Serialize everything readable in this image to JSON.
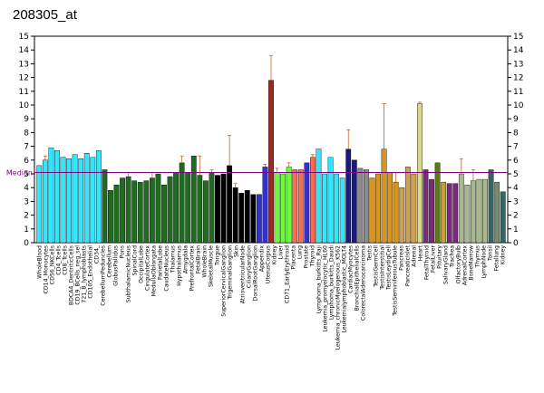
{
  "chart_data": {
    "type": "bar",
    "title": "208305_at",
    "ylim": [
      0,
      15
    ],
    "yticks": [
      0,
      1,
      2,
      3,
      4,
      5,
      6,
      7,
      8,
      9,
      10,
      11,
      12,
      13,
      14,
      15
    ],
    "median": 5.1,
    "median_label": "Median",
    "colors": {
      "cyan": "#33e6ff",
      "darkgreen": "#1f6b1f",
      "black": "#000000",
      "blue": "#3333cc",
      "darkred": "#9e2a1f",
      "lime": "#66ff33",
      "salmon": "#ff6b52",
      "navy": "#1a1a7a",
      "gray": "#8a8a8a",
      "orange": "#d9941a",
      "tan": "#cfa050",
      "khaki": "#d9d98c",
      "purple": "#7a2a7a",
      "olive": "#5a7a1a",
      "gold": "#c8a030",
      "paleolive": "#a8b890",
      "teal": "#336666",
      "greengray": "#7a8a70",
      "mediancolor": "#800080",
      "errorbar": "#c86428"
    },
    "bars": [
      {
        "label": "WholeBlood",
        "value": 5.6,
        "err": 0.0,
        "color": "cyan"
      },
      {
        "label": "CD14_Monocytes",
        "value": 6.0,
        "err": 0.3,
        "color": "cyan"
      },
      {
        "label": "CD4_Tcells",
        "value": 6.9,
        "err": 0.0,
        "color": "cyan"
      },
      {
        "label": "CD56_NKCells",
        "value": 6.7,
        "err": 0.0,
        "color": "cyan"
      },
      {
        "label": "CD8_Tcells",
        "value": 6.2,
        "err": 0.0,
        "color": "cyan"
      },
      {
        "label": "721_B_lymphoblasts",
        "value": 6.1,
        "err": 0.0,
        "color": "cyan"
      },
      {
        "label": "BDCA4_DentriticCells",
        "value": 6.4,
        "err": 0.0,
        "color": "cyan"
      },
      {
        "label": "CD19_BCells_neg_sel",
        "value": 6.1,
        "err": 0.0,
        "color": "cyan"
      },
      {
        "label": "CD34_",
        "value": 6.5,
        "err": 0.0,
        "color": "cyan"
      },
      {
        "label": "CD105_Endothelial",
        "value": 6.2,
        "err": 0.0,
        "color": "cyan"
      },
      {
        "label": "CD71_EarlyErythroid",
        "value": 6.7,
        "err": 0.0,
        "color": "cyan"
      },
      {
        "label": "CerebellumPeduncles",
        "value": 5.3,
        "err": 0.0,
        "color": "darkgreen"
      },
      {
        "label": "Cerebellum",
        "value": 3.8,
        "err": 0.0,
        "color": "darkgreen"
      },
      {
        "label": "GlobusPallidus",
        "value": 4.2,
        "err": 0.0,
        "color": "darkgreen"
      },
      {
        "label": "Pons",
        "value": 4.7,
        "err": 0.0,
        "color": "darkgreen"
      },
      {
        "label": "SubthalamicNucleus",
        "value": 4.8,
        "err": 0.3,
        "color": "darkgreen"
      },
      {
        "label": "SpinalCord",
        "value": 4.5,
        "err": 0.0,
        "color": "darkgreen"
      },
      {
        "label": "OccipitalLobe",
        "value": 4.4,
        "err": 0.0,
        "color": "darkgreen"
      },
      {
        "label": "CingulateCortex",
        "value": 4.5,
        "err": 0.0,
        "color": "darkgreen"
      },
      {
        "label": "MedullaOblongata",
        "value": 4.7,
        "err": 0.4,
        "color": "darkgreen"
      },
      {
        "label": "TemporalLobe",
        "value": 5.0,
        "err": 0.0,
        "color": "darkgreen"
      },
      {
        "label": "ParietalLobe",
        "value": 4.2,
        "err": 0.0,
        "color": "darkgreen"
      },
      {
        "label": "CaudateNucleus",
        "value": 4.8,
        "err": 0.0,
        "color": "darkgreen"
      },
      {
        "label": "Thalamus",
        "value": 5.1,
        "err": 0.0,
        "color": "darkgreen"
      },
      {
        "label": "Amygdala",
        "value": 5.8,
        "err": 0.5,
        "color": "darkgreen"
      },
      {
        "label": "Hypothalamus",
        "value": 5.1,
        "err": 0.0,
        "color": "darkgreen"
      },
      {
        "label": "PrefrontalCortex",
        "value": 6.3,
        "err": 0.0,
        "color": "darkgreen"
      },
      {
        "label": "FetalBrain",
        "value": 4.9,
        "err": 1.4,
        "color": "darkgreen"
      },
      {
        "label": "WholeBrain",
        "value": 4.5,
        "err": 0.0,
        "color": "darkgreen"
      },
      {
        "label": "SkeletalMuscle",
        "value": 5.1,
        "err": 0.2,
        "color": "darkgreen"
      },
      {
        "label": "Tongue",
        "value": 4.9,
        "err": 0.0,
        "color": "black"
      },
      {
        "label": "CiliaryGanglion",
        "value": 5.0,
        "err": 0.0,
        "color": "black"
      },
      {
        "label": "SuperiorCervicalGanglion",
        "value": 5.6,
        "err": 2.2,
        "color": "black"
      },
      {
        "label": "TrigeminalGanglion",
        "value": 4.0,
        "err": 0.3,
        "color": "black"
      },
      {
        "label": "Skin",
        "value": 3.6,
        "err": 0.0,
        "color": "black"
      },
      {
        "label": "AtrioventricularNode",
        "value": 3.8,
        "err": 0.0,
        "color": "black"
      },
      {
        "label": "DorsalRootGanglion",
        "value": 3.5,
        "err": 0.0,
        "color": "black"
      },
      {
        "label": "Appendix",
        "value": 3.5,
        "err": 0.0,
        "color": "blue"
      },
      {
        "label": "AdiposeTissue",
        "value": 5.5,
        "err": 0.2,
        "color": "blue"
      },
      {
        "label": "UterusCorpus",
        "value": 11.8,
        "err": 1.8,
        "color": "darkred"
      },
      {
        "label": "Kidney",
        "value": 5.1,
        "err": 0.3,
        "color": "lime"
      },
      {
        "label": "Liver",
        "value": 5.0,
        "err": 0.0,
        "color": "lime"
      },
      {
        "label": "CD71_EarlyErythroid",
        "value": 5.5,
        "err": 0.3,
        "color": "lime"
      },
      {
        "label": "Placenta",
        "value": 5.3,
        "err": 0.0,
        "color": "salmon"
      },
      {
        "label": "Lung",
        "value": 5.3,
        "err": 0.0,
        "color": "salmon"
      },
      {
        "label": "Prostate",
        "value": 5.8,
        "err": 0.0,
        "color": "blue"
      },
      {
        "label": "Thyroid",
        "value": 6.2,
        "err": 0.2,
        "color": "salmon"
      },
      {
        "label": "Lymphoma_burkitts_Raji",
        "value": 6.8,
        "err": 0.0,
        "color": "cyan"
      },
      {
        "label": "Leukemia_promyelocytic_HL60",
        "value": 5.0,
        "err": 0.0,
        "color": "cyan"
      },
      {
        "label": "Lymphoma_burkitts_Daudi",
        "value": 6.2,
        "err": 0.0,
        "color": "cyan"
      },
      {
        "label": "Leukemia_chronicMyelogenous_K562",
        "value": 5.0,
        "err": 0.0,
        "color": "cyan"
      },
      {
        "label": "Leukemialymphoblastic_MOLT4",
        "value": 4.7,
        "err": 0.0,
        "color": "cyan"
      },
      {
        "label": "ColorectalAdenocarcinoma",
        "value": 6.8,
        "err": 1.4,
        "color": "navy"
      },
      {
        "label": "CardiacMyocytes",
        "value": 6.0,
        "err": 0.0,
        "color": "navy"
      },
      {
        "label": "BronchialEpithelialCells",
        "value": 5.4,
        "err": 0.0,
        "color": "gray"
      },
      {
        "label": "ColonAdenocarcinoma",
        "value": 5.3,
        "err": 0.0,
        "color": "gray"
      },
      {
        "label": "Testis",
        "value": 4.7,
        "err": 0.0,
        "color": "orange"
      },
      {
        "label": "TestisGermCell",
        "value": 5.0,
        "err": 0.0,
        "color": "orange"
      },
      {
        "label": "TestisInterstitial",
        "value": 6.8,
        "err": 3.3,
        "color": "orange"
      },
      {
        "label": "TestisLeydigCell",
        "value": 5.1,
        "err": 0.0,
        "color": "orange"
      },
      {
        "label": "TestisSeminiferousTubule",
        "value": 4.4,
        "err": 0.7,
        "color": "orange"
      },
      {
        "label": "Pancreas",
        "value": 4.0,
        "err": 0.0,
        "color": "tan"
      },
      {
        "label": "PancreaticIslet",
        "value": 5.5,
        "err": 0.0,
        "color": "tan"
      },
      {
        "label": "Adrenal",
        "value": 5.0,
        "err": 0.0,
        "color": "tan"
      },
      {
        "label": "Heart",
        "value": 10.1,
        "err": 0.1,
        "color": "khaki"
      },
      {
        "label": "FetalThyroid",
        "value": 5.3,
        "err": 0.0,
        "color": "purple"
      },
      {
        "label": "FetalLiver",
        "value": 4.6,
        "err": 0.0,
        "color": "purple"
      },
      {
        "label": "Pituitary",
        "value": 5.8,
        "err": 0.0,
        "color": "olive"
      },
      {
        "label": "SalivaryGland",
        "value": 4.4,
        "err": 0.0,
        "color": "gold"
      },
      {
        "label": "Trachea",
        "value": 4.3,
        "err": 0.0,
        "color": "purple"
      },
      {
        "label": "OlfactoryBulb",
        "value": 4.3,
        "err": 0.0,
        "color": "purple"
      },
      {
        "label": "AdrenalCortex",
        "value": 5.0,
        "err": 1.1,
        "color": "paleolive"
      },
      {
        "label": "Bone Marrow",
        "value": 4.2,
        "err": 0.0,
        "color": "paleolive"
      },
      {
        "label": "Uterus",
        "value": 4.5,
        "err": 0.8,
        "color": "paleolive"
      },
      {
        "label": "Thymus",
        "value": 4.6,
        "err": 0.0,
        "color": "paleolive"
      },
      {
        "label": "LymphNode",
        "value": 4.6,
        "err": 0.0,
        "color": "paleolive"
      },
      {
        "label": "Tonsil",
        "value": 5.3,
        "err": 0.0,
        "color": "teal"
      },
      {
        "label": "FetalLung",
        "value": 4.4,
        "err": 0.0,
        "color": "greengray"
      },
      {
        "label": "Ovary",
        "value": 3.7,
        "err": 0.0,
        "color": "teal"
      }
    ],
    "xlabels_shown": [
      "WholeBlood",
      "CD14_Monocytes",
      "CD56_NKCells",
      "CD4_Tcells",
      "CD8_Tcells",
      "BDCA4_DentriticCells",
      "CD19_BCells_neg_sel",
      "721_B_lymphoblasts",
      "CD105_Endothelial",
      "CD34_",
      "CerebellumPeduncles",
      "Cerebellum",
      "GlobusPallidus",
      "Pons",
      "SubthalamicNucleus",
      "SpinalCord",
      "OccipitalLobe",
      "CingulateCortex",
      "MedullaOblongata",
      "ParietalLobe",
      "CaudateNucleus",
      "Thalamus",
      "Hypothalamus",
      "Amygdala",
      "PrefrontalCortex",
      "FetalBrain",
      "WholeBrain",
      "SkeletalMuscle",
      "Tongue",
      "SuperiorCervicalGanglion",
      "TrigeminalGanglion",
      "Skin",
      "AtrioventricularNode",
      "CiliaryGanglion",
      "DorsalRootGanglion",
      "Appendix",
      "UterusCorpus",
      "Kidney",
      "Liver",
      "CD71_EarlyErythroid",
      "Placenta",
      "Lung",
      "Prostate",
      "Thyroid",
      "Lymphoma_burkitts_Raji",
      "Leukemia_promyelocytic_HL60",
      "Lymphoma_burkitts_Daudi",
      "Leukemia_chronicMyelogenous_K562",
      "Leukemialymphoblastic_MOLT4",
      "CardiacMyocytes",
      "BronchialEpithelialCells",
      "ColorectalAdenocarcinoma",
      "Testis",
      "TestisGermCell",
      "TestisInterstitial",
      "TestisLeydigCell",
      "TestisSeminiferousTubule",
      "Pancreas",
      "PancreaticIslet",
      "Adrenal",
      "Heart",
      "FetalThyroid",
      "FetalLiver",
      "Pituitary",
      "SalivaryGland",
      "Trachea",
      "OlfactoryBulb",
      "AdrenalCortex",
      "BoneMarrow",
      "Thymus",
      "LymphNode",
      "Tonsil",
      "Fetallung",
      "Kidney"
    ]
  }
}
